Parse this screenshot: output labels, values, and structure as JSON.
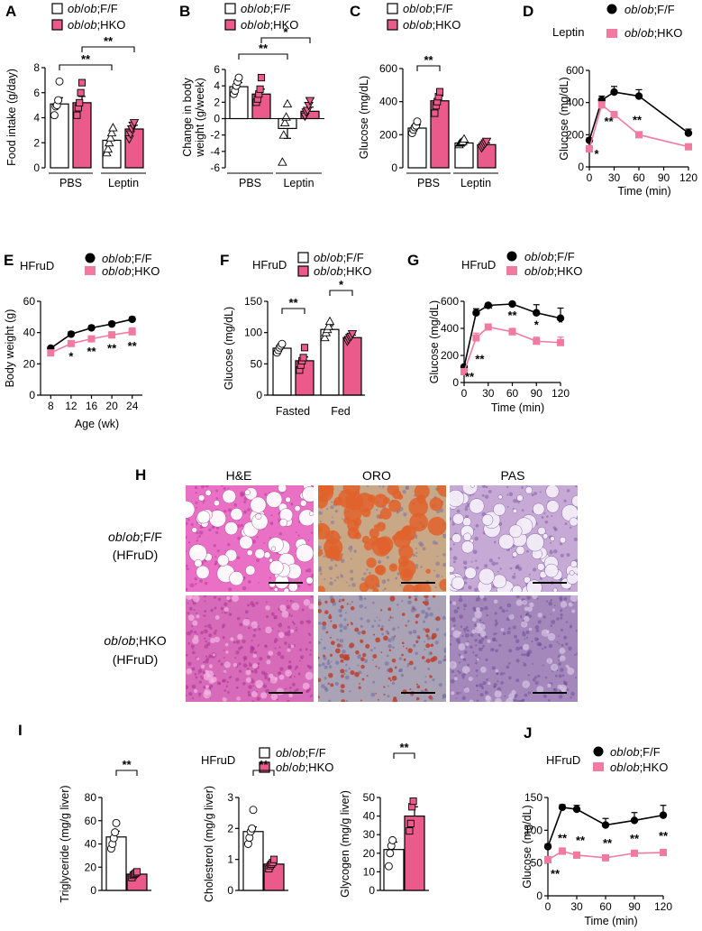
{
  "colors": {
    "pink": "#ea5b8c",
    "pink_light": "#f07aa0",
    "black": "#000000",
    "he_bg": "#e970c4",
    "he_bg2": "#d76bb9",
    "oro_bg": "#c9a888",
    "oro_bg2": "#aaa2b5",
    "oro_drop": "#e0622c",
    "pas_bg": "#c7a9d5",
    "pas_bg2": "#a488bb"
  },
  "legend": {
    "ff_pre": "ob",
    "ff_mid": "/",
    "ff_mid2": "ob",
    "ff_post": ";F/F",
    "hko_pre": "ob",
    "hko_mid": "/",
    "hko_mid2": "ob",
    "hko_post": ";HKO"
  },
  "treatment_labels": {
    "leptin": "Leptin",
    "hfrud": "HFruD"
  },
  "panels": {
    "A": "A",
    "B": "B",
    "C": "C",
    "D": "D",
    "E": "E",
    "F": "F",
    "G": "G",
    "H": "H",
    "I": "I",
    "J": "J"
  },
  "histology": {
    "columns": [
      "H&E",
      "ORO",
      "PAS"
    ],
    "row1_label_a": "ob/ob;F/F",
    "row1_label_b": "(HFruD)",
    "row2_label_a": "ob/ob;HKO",
    "row2_label_b": "(HFruD)"
  },
  "chart_data": [
    {
      "panel": "A",
      "type": "bar",
      "ylabel": "Food intake (g/day)",
      "ylim": [
        0,
        8
      ],
      "yticks": [
        "0",
        "2",
        "4",
        "6",
        "8"
      ],
      "groups": [
        "PBS",
        "Leptin"
      ],
      "series": [
        {
          "name": "ob/ob;F/F",
          "values": [
            5.1,
            2.2
          ],
          "sem": [
            0.5,
            0.4
          ],
          "points": [
            [
              4.2,
              4.9,
              5.0,
              5.4,
              6.9
            ],
            [
              1.2,
              1.5,
              2.0,
              2.4,
              2.8,
              3.2
            ]
          ]
        },
        {
          "name": "ob/ob;HKO",
          "values": [
            5.2,
            3.1
          ],
          "sem": [
            0.5,
            0.3
          ],
          "points": [
            [
              4.2,
              4.8,
              5.2,
              6.0,
              6.8
            ],
            [
              2.3,
              2.7,
              3.1,
              3.4,
              3.6
            ]
          ]
        }
      ],
      "significance": [
        "**",
        "**"
      ]
    },
    {
      "panel": "B",
      "type": "bar",
      "ylabel_line1": "Change in body",
      "ylabel_line2": "weight (g/week)",
      "ylim": [
        -6,
        6
      ],
      "yticks": [
        "-6",
        "-4",
        "-2",
        "0",
        "2",
        "4",
        "6"
      ],
      "groups": [
        "PBS",
        "Leptin"
      ],
      "series": [
        {
          "name": "ob/ob;F/F",
          "values": [
            3.9,
            -1.2
          ],
          "sem": [
            0.5,
            1.2
          ],
          "points": [
            [
              3.0,
              3.4,
              4.0,
              4.5,
              5.0
            ],
            [
              -5.3,
              -2.0,
              -0.5,
              0.2,
              1.8
            ]
          ]
        },
        {
          "name": "ob/ob;HKO",
          "values": [
            3.0,
            0.9
          ],
          "sem": [
            0.6,
            0.5
          ],
          "points": [
            [
              2.0,
              2.4,
              3.0,
              3.6,
              5.0
            ],
            [
              0.3,
              0.8,
              1.0,
              1.6,
              2.2
            ]
          ]
        }
      ],
      "significance": [
        "**",
        "*"
      ]
    },
    {
      "panel": "C",
      "type": "bar",
      "ylabel": "Glucose (mg/dL)",
      "ylim": [
        0,
        600
      ],
      "yticks": [
        "0",
        "200",
        "400",
        "600"
      ],
      "groups": [
        "PBS",
        "Leptin"
      ],
      "series": [
        {
          "name": "ob/ob;F/F",
          "values": [
            240,
            150
          ],
          "sem": [
            20,
            10
          ],
          "points": [
            [
              210,
              230,
              245,
              255,
              280
            ],
            [
              140,
              150,
              155,
              160,
              175
            ]
          ]
        },
        {
          "name": "ob/ob;HKO",
          "values": [
            405,
            140
          ],
          "sem": [
            30,
            10
          ],
          "points": [
            [
              330,
              375,
              400,
              430,
              460
            ],
            [
              120,
              130,
              140,
              150,
              160
            ]
          ]
        }
      ],
      "significance": [
        "**"
      ]
    },
    {
      "panel": "D",
      "type": "line",
      "ylabel": "Glucose (mg/dL)",
      "xlabel": "Time (min)",
      "ylim": [
        0,
        600
      ],
      "yticks": [
        "0",
        "200",
        "400",
        "600"
      ],
      "xlim": [
        0,
        120
      ],
      "xticks": [
        "0",
        "30",
        "60",
        "90",
        "120"
      ],
      "x": [
        0,
        15,
        30,
        60,
        120
      ],
      "series": [
        {
          "name": "ob/ob;F/F",
          "values": [
            165,
            415,
            465,
            440,
            210
          ],
          "sem": [
            15,
            25,
            35,
            40,
            25
          ]
        },
        {
          "name": "ob/ob;HKO",
          "values": [
            112,
            385,
            325,
            200,
            125
          ],
          "sem": [
            10,
            20,
            20,
            15,
            10
          ]
        }
      ],
      "stars": [
        {
          "x": 0,
          "label": "*"
        },
        {
          "x": 30,
          "label": "**"
        },
        {
          "x": 60,
          "label": "**"
        },
        {
          "x": 120,
          "label": "*"
        }
      ]
    },
    {
      "panel": "E",
      "type": "line",
      "ylabel": "Body weight (g)",
      "xlabel": "Age (wk)",
      "ylim": [
        0,
        60
      ],
      "yticks": [
        "0",
        "20",
        "40",
        "60"
      ],
      "xlim": [
        6,
        26
      ],
      "xticks": [
        "8",
        "12",
        "16",
        "20",
        "24"
      ],
      "x": [
        8,
        12,
        16,
        20,
        24
      ],
      "series": [
        {
          "name": "ob/ob;F/F",
          "values": [
            30,
            39,
            43,
            45.5,
            48.5
          ],
          "sem": [
            1,
            1.5,
            1.5,
            1.5,
            1.5
          ]
        },
        {
          "name": "ob/ob;HKO",
          "values": [
            27,
            33,
            36,
            38.5,
            40.5
          ],
          "sem": [
            1,
            1.5,
            1.5,
            2,
            2.5
          ]
        }
      ],
      "stars": [
        {
          "x": 12,
          "label": "*"
        },
        {
          "x": 16,
          "label": "**"
        },
        {
          "x": 20,
          "label": "**"
        },
        {
          "x": 24,
          "label": "**"
        }
      ]
    },
    {
      "panel": "F",
      "type": "bar",
      "ylabel": "Glucose (mg/dL)",
      "ylim": [
        0,
        150
      ],
      "yticks": [
        "0",
        "50",
        "100",
        "150"
      ],
      "groups": [
        "Fasted",
        "Fed"
      ],
      "series": [
        {
          "name": "ob/ob;F/F",
          "values": [
            75,
            105
          ],
          "sem": [
            4,
            6
          ],
          "points": [
            [
              68,
              72,
              76,
              79,
              82
            ],
            [
              92,
              100,
              105,
              110,
              118
            ]
          ]
        },
        {
          "name": "ob/ob;HKO",
          "values": [
            55,
            92
          ],
          "sem": [
            6,
            4
          ],
          "points": [
            [
              40,
              48,
              55,
              60,
              76
            ],
            [
              86,
              89,
              92,
              94,
              98
            ]
          ]
        }
      ],
      "significance": [
        "**",
        "*"
      ]
    },
    {
      "panel": "G",
      "type": "line",
      "ylabel": "Glucose (mg/dL)",
      "xlabel": "Time (min)",
      "ylim": [
        0,
        600
      ],
      "yticks": [
        "0",
        "200",
        "400",
        "600"
      ],
      "xlim": [
        0,
        120
      ],
      "xticks": [
        "0",
        "30",
        "60",
        "90",
        "120"
      ],
      "x": [
        0,
        15,
        30,
        60,
        90,
        120
      ],
      "series": [
        {
          "name": "ob/ob;F/F",
          "values": [
            115,
            515,
            570,
            580,
            515,
            475
          ],
          "sem": [
            15,
            30,
            15,
            10,
            60,
            75
          ]
        },
        {
          "name": "ob/ob;HKO",
          "values": [
            80,
            330,
            410,
            375,
            305,
            295
          ],
          "sem": [
            10,
            35,
            20,
            25,
            30,
            40
          ]
        }
      ],
      "stars": [
        {
          "x": 0,
          "label": "**"
        },
        {
          "x": 15,
          "label": "**"
        },
        {
          "x": 30,
          "label": "**"
        },
        {
          "x": 60,
          "label": "**"
        },
        {
          "x": 90,
          "label": "*"
        },
        {
          "x": 120,
          "label": "*"
        }
      ]
    },
    {
      "panel": "I-1",
      "type": "bar",
      "ylabel": "Triglyceride (mg/g liver)",
      "ylim": [
        0,
        80
      ],
      "yticks": [
        "0",
        "20",
        "40",
        "60",
        "80"
      ],
      "groups": [
        ""
      ],
      "series": [
        {
          "name": "ob/ob;F/F",
          "values": [
            46
          ],
          "sem": [
            5
          ],
          "points": [
            [
              36,
              40,
              45,
              50,
              58
            ]
          ]
        },
        {
          "name": "ob/ob;HKO",
          "values": [
            14
          ],
          "sem": [
            1.5
          ],
          "points": [
            [
              11,
              13,
              14,
              15,
              16
            ]
          ]
        }
      ],
      "significance": [
        "**"
      ]
    },
    {
      "panel": "I-2",
      "type": "bar",
      "ylabel": "Cholesterol (mg/g liver)",
      "ylim": [
        0,
        3
      ],
      "yticks": [
        "0",
        "1",
        "2",
        "3"
      ],
      "groups": [
        ""
      ],
      "series": [
        {
          "name": "ob/ob;F/F",
          "values": [
            1.9
          ],
          "sem": [
            0.15
          ],
          "points": [
            [
              1.5,
              1.7,
              1.9,
              2.0,
              2.6
            ]
          ]
        },
        {
          "name": "ob/ob;HKO",
          "values": [
            0.85
          ],
          "sem": [
            0.07
          ],
          "points": [
            [
              0.7,
              0.8,
              0.85,
              0.9,
              1.0
            ]
          ]
        }
      ],
      "significance": [
        "**"
      ]
    },
    {
      "panel": "I-3",
      "type": "bar",
      "ylabel": "Glycogen (mg/g liver)",
      "ylim": [
        0,
        50
      ],
      "yticks": [
        "0",
        "10",
        "20",
        "30",
        "40",
        "50"
      ],
      "groups": [
        ""
      ],
      "series": [
        {
          "name": "ob/ob;F/F",
          "values": [
            22
          ],
          "sem": [
            4
          ],
          "points": [
            [
              13,
              20,
              24,
              27
            ]
          ]
        },
        {
          "name": "ob/ob;HKO",
          "values": [
            40
          ],
          "sem": [
            5
          ],
          "points": [
            [
              32,
              36,
              45,
              48
            ]
          ]
        }
      ],
      "significance": [
        "**"
      ]
    },
    {
      "panel": "J",
      "type": "line",
      "ylabel": "Glucose (mg/dL)",
      "xlabel": "Time (min)",
      "ylim": [
        0,
        150
      ],
      "yticks": [
        "0",
        "50",
        "100",
        "150"
      ],
      "xlim": [
        0,
        120
      ],
      "xticks": [
        "0",
        "30",
        "60",
        "90",
        "120"
      ],
      "x": [
        0,
        15,
        30,
        60,
        90,
        120
      ],
      "series": [
        {
          "name": "ob/ob;F/F",
          "values": [
            75,
            135,
            132,
            108,
            115,
            123
          ],
          "sem": [
            4,
            4,
            6,
            10,
            12,
            15
          ]
        },
        {
          "name": "ob/ob;HKO",
          "values": [
            55,
            68,
            62,
            58,
            65,
            66
          ],
          "sem": [
            5,
            5,
            5,
            4,
            4,
            5
          ]
        }
      ],
      "stars": [
        {
          "x": 0,
          "label": "**"
        },
        {
          "x": 15,
          "label": "**"
        },
        {
          "x": 30,
          "label": "**"
        },
        {
          "x": 60,
          "label": "**"
        },
        {
          "x": 90,
          "label": "**"
        },
        {
          "x": 120,
          "label": "**"
        }
      ]
    }
  ]
}
